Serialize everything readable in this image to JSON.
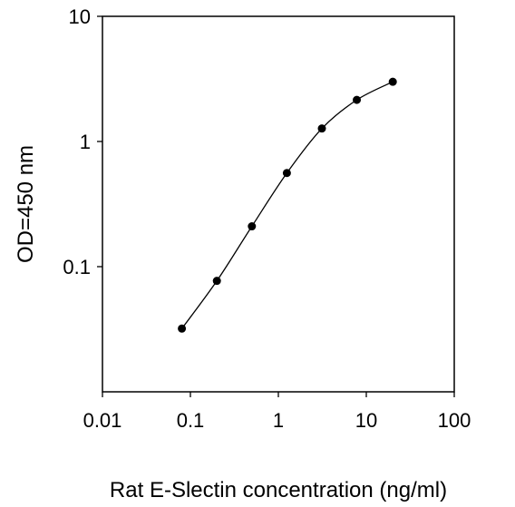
{
  "chart_data": {
    "type": "scatter",
    "title": "",
    "xlabel": "Rat E-Slectin concentration (ng/ml)",
    "ylabel": "OD=450 nm",
    "xscale": "log",
    "yscale": "log",
    "xlim": [
      0.01,
      100
    ],
    "ylim": [
      0.01,
      10
    ],
    "xticks": [
      0.01,
      0.1,
      1,
      10,
      100
    ],
    "xtick_labels": [
      "0.01",
      "0.1",
      "1",
      "10",
      "100"
    ],
    "yticks": [
      0.1,
      1,
      10
    ],
    "ytick_labels": [
      "0.1",
      "1",
      "10"
    ],
    "grid": false,
    "legend": "none",
    "series": [
      {
        "x": [
          0.08,
          0.2,
          0.5,
          1.25,
          3.125,
          7.8,
          20
        ],
        "y": [
          0.032,
          0.077,
          0.21,
          0.56,
          1.27,
          2.15,
          3.0
        ],
        "marker": "circle",
        "connected": true,
        "color": "#000000"
      }
    ]
  }
}
